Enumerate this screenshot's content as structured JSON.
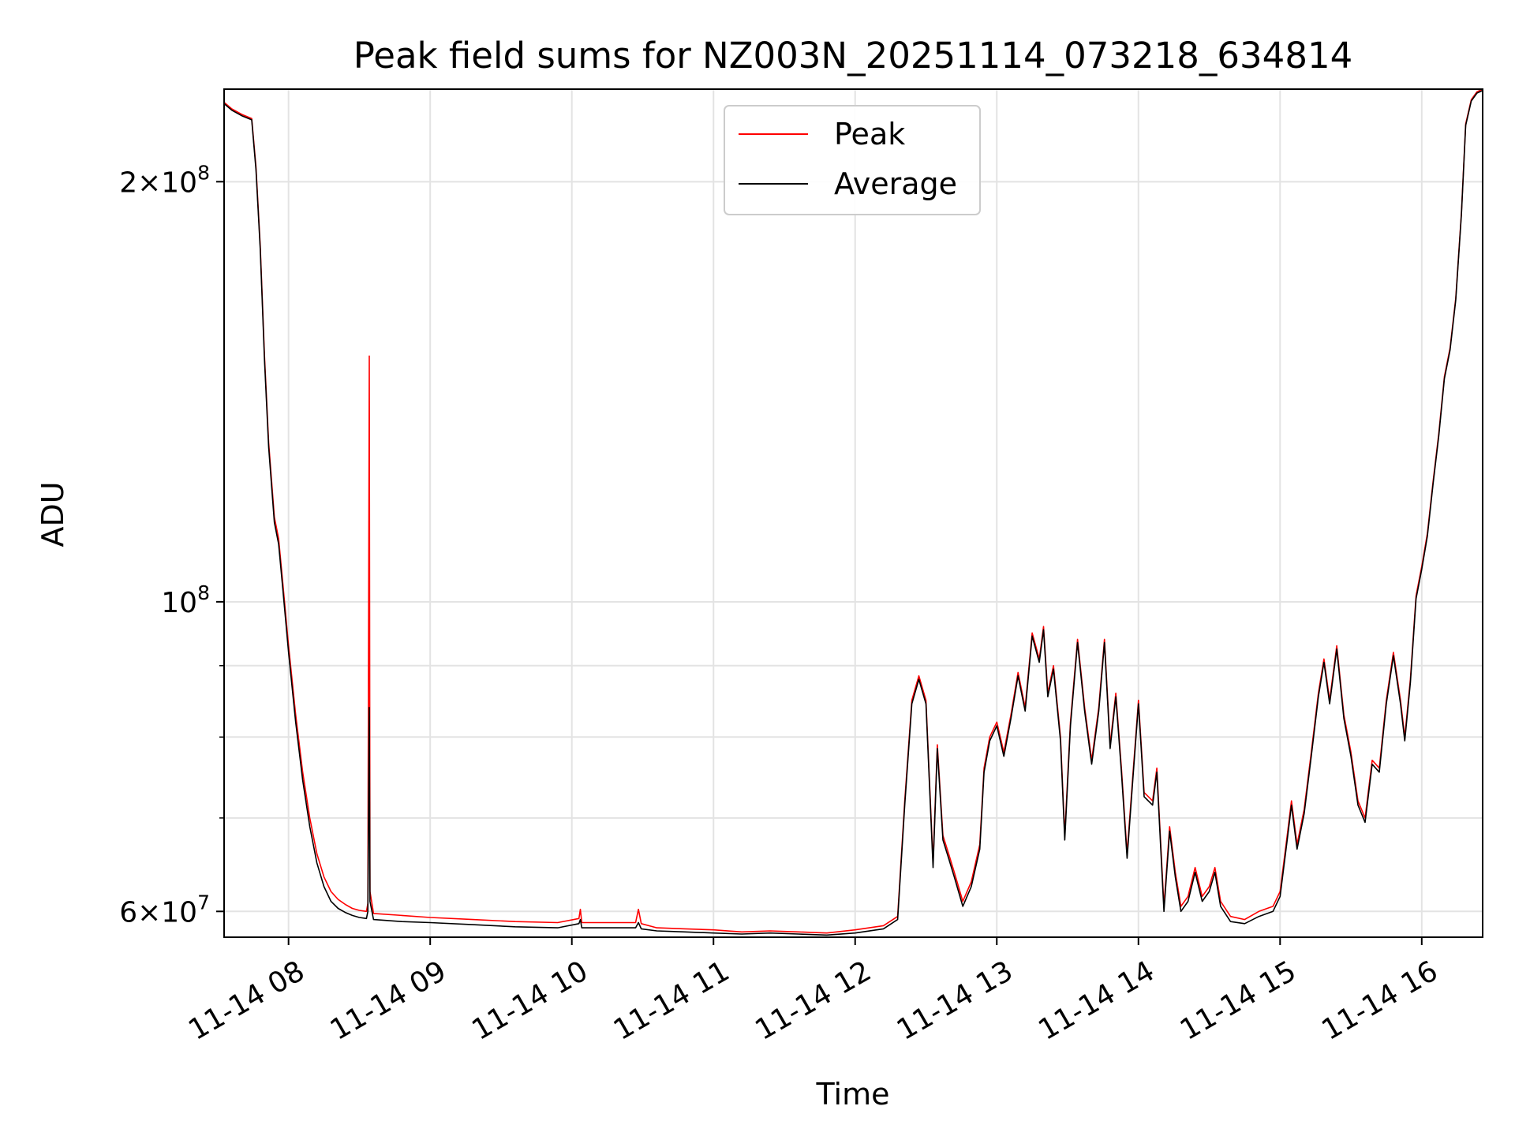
{
  "chart_data": {
    "type": "line",
    "title": "Peak field sums for NZ003N_20251114_073218_634814",
    "xlabel": "Time",
    "ylabel": "ADU",
    "yscale": "log",
    "ylim": [
      57500000,
      233000000
    ],
    "xlim_hours": [
      7.545,
      16.43
    ],
    "grid": true,
    "legend_position": "upper center",
    "x_ticks": [
      {
        "hour": 8,
        "label": "11-14 08"
      },
      {
        "hour": 9,
        "label": "11-14 09"
      },
      {
        "hour": 10,
        "label": "11-14 10"
      },
      {
        "hour": 11,
        "label": "11-14 11"
      },
      {
        "hour": 12,
        "label": "11-14 12"
      },
      {
        "hour": 13,
        "label": "11-14 13"
      },
      {
        "hour": 14,
        "label": "11-14 14"
      },
      {
        "hour": 15,
        "label": "11-14 15"
      },
      {
        "hour": 16,
        "label": "11-14 16"
      }
    ],
    "y_major_ticks": [
      {
        "value": 60000000,
        "mantissa": "6",
        "exponent": "7"
      },
      {
        "value": 100000000,
        "mantissa": "",
        "exponent": "8"
      },
      {
        "value": 200000000,
        "mantissa": "2",
        "exponent": "8"
      }
    ],
    "y_minor_ticks": [
      70000000,
      80000000,
      90000000
    ],
    "series": [
      {
        "name": "Peak",
        "color": "#ff0000",
        "points": [
          [
            7.545,
            228000000
          ],
          [
            7.6,
            225500000
          ],
          [
            7.67,
            223500000
          ],
          [
            7.74,
            222000000
          ],
          [
            7.77,
            205000000
          ],
          [
            7.8,
            180000000
          ],
          [
            7.83,
            150000000
          ],
          [
            7.86,
            130000000
          ],
          [
            7.9,
            115000000
          ],
          [
            7.93,
            111000000
          ],
          [
            7.96,
            103000000
          ],
          [
            8.0,
            93000000
          ],
          [
            8.05,
            83000000
          ],
          [
            8.1,
            75500000
          ],
          [
            8.15,
            70000000
          ],
          [
            8.2,
            66000000
          ],
          [
            8.25,
            63500000
          ],
          [
            8.3,
            62000000
          ],
          [
            8.35,
            61200000
          ],
          [
            8.4,
            60700000
          ],
          [
            8.45,
            60300000
          ],
          [
            8.5,
            60100000
          ],
          [
            8.55,
            60000000
          ],
          [
            8.56,
            60800000
          ],
          [
            8.57,
            150000000
          ],
          [
            8.575,
            62000000
          ],
          [
            8.6,
            59800000
          ],
          [
            8.8,
            59600000
          ],
          [
            9.0,
            59400000
          ],
          [
            9.3,
            59200000
          ],
          [
            9.6,
            59000000
          ],
          [
            9.9,
            58900000
          ],
          [
            10.05,
            59300000
          ],
          [
            10.06,
            60200000
          ],
          [
            10.07,
            58900000
          ],
          [
            10.3,
            58900000
          ],
          [
            10.45,
            58900000
          ],
          [
            10.47,
            60200000
          ],
          [
            10.49,
            58800000
          ],
          [
            10.6,
            58400000
          ],
          [
            10.8,
            58300000
          ],
          [
            11.0,
            58200000
          ],
          [
            11.2,
            58000000
          ],
          [
            11.4,
            58100000
          ],
          [
            11.6,
            58000000
          ],
          [
            11.8,
            57900000
          ],
          [
            12.0,
            58200000
          ],
          [
            12.2,
            58600000
          ],
          [
            12.3,
            59500000
          ],
          [
            12.35,
            72000000
          ],
          [
            12.4,
            85000000
          ],
          [
            12.45,
            88500000
          ],
          [
            12.5,
            85000000
          ],
          [
            12.55,
            65000000
          ],
          [
            12.58,
            79000000
          ],
          [
            12.62,
            68000000
          ],
          [
            12.66,
            66000000
          ],
          [
            12.7,
            64000000
          ],
          [
            12.76,
            61000000
          ],
          [
            12.82,
            63000000
          ],
          [
            12.88,
            67000000
          ],
          [
            12.91,
            76000000
          ],
          [
            12.95,
            80000000
          ],
          [
            13.0,
            82000000
          ],
          [
            13.05,
            78000000
          ],
          [
            13.1,
            83000000
          ],
          [
            13.15,
            89000000
          ],
          [
            13.2,
            84000000
          ],
          [
            13.25,
            95000000
          ],
          [
            13.3,
            91000000
          ],
          [
            13.33,
            96000000
          ],
          [
            13.36,
            86000000
          ],
          [
            13.4,
            90000000
          ],
          [
            13.45,
            80000000
          ],
          [
            13.48,
            68000000
          ],
          [
            13.52,
            82000000
          ],
          [
            13.57,
            94000000
          ],
          [
            13.62,
            84000000
          ],
          [
            13.67,
            77000000
          ],
          [
            13.72,
            84000000
          ],
          [
            13.76,
            94000000
          ],
          [
            13.8,
            79000000
          ],
          [
            13.84,
            86000000
          ],
          [
            13.88,
            76000000
          ],
          [
            13.92,
            66000000
          ],
          [
            13.96,
            75000000
          ],
          [
            14.0,
            85000000
          ],
          [
            14.04,
            73000000
          ],
          [
            14.1,
            72000000
          ],
          [
            14.13,
            76000000
          ],
          [
            14.18,
            60500000
          ],
          [
            14.22,
            69000000
          ],
          [
            14.26,
            64000000
          ],
          [
            14.3,
            60500000
          ],
          [
            14.35,
            61500000
          ],
          [
            14.4,
            64500000
          ],
          [
            14.45,
            61500000
          ],
          [
            14.5,
            62500000
          ],
          [
            14.54,
            64500000
          ],
          [
            14.58,
            61000000
          ],
          [
            14.65,
            59500000
          ],
          [
            14.75,
            59200000
          ],
          [
            14.85,
            60000000
          ],
          [
            14.95,
            60500000
          ],
          [
            15.0,
            62000000
          ],
          [
            15.05,
            68000000
          ],
          [
            15.08,
            72000000
          ],
          [
            15.12,
            67000000
          ],
          [
            15.17,
            71000000
          ],
          [
            15.22,
            78000000
          ],
          [
            15.27,
            86000000
          ],
          [
            15.31,
            91000000
          ],
          [
            15.35,
            85000000
          ],
          [
            15.4,
            93000000
          ],
          [
            15.45,
            83000000
          ],
          [
            15.5,
            78000000
          ],
          [
            15.55,
            72000000
          ],
          [
            15.6,
            70000000
          ],
          [
            15.65,
            77000000
          ],
          [
            15.7,
            76000000
          ],
          [
            15.75,
            85000000
          ],
          [
            15.8,
            92000000
          ],
          [
            15.85,
            85000000
          ],
          [
            15.88,
            80000000
          ],
          [
            15.92,
            88000000
          ],
          [
            15.96,
            101000000
          ],
          [
            16.0,
            106000000
          ],
          [
            16.04,
            112000000
          ],
          [
            16.08,
            122000000
          ],
          [
            16.12,
            132000000
          ],
          [
            16.16,
            145000000
          ],
          [
            16.2,
            152000000
          ],
          [
            16.24,
            165000000
          ],
          [
            16.28,
            190000000
          ],
          [
            16.31,
            220000000
          ],
          [
            16.35,
            229000000
          ],
          [
            16.39,
            232000000
          ],
          [
            16.43,
            233000000
          ]
        ]
      },
      {
        "name": "Average",
        "color": "#000000",
        "points": [
          [
            7.545,
            227500000
          ],
          [
            7.6,
            225000000
          ],
          [
            7.67,
            223000000
          ],
          [
            7.74,
            221500000
          ],
          [
            7.77,
            204000000
          ],
          [
            7.8,
            179000000
          ],
          [
            7.83,
            149000000
          ],
          [
            7.86,
            129000000
          ],
          [
            7.9,
            114000000
          ],
          [
            7.93,
            110000000
          ],
          [
            7.96,
            102000000
          ],
          [
            8.0,
            92000000
          ],
          [
            8.05,
            82000000
          ],
          [
            8.1,
            74500000
          ],
          [
            8.15,
            69000000
          ],
          [
            8.2,
            65000000
          ],
          [
            8.25,
            62500000
          ],
          [
            8.3,
            61000000
          ],
          [
            8.35,
            60300000
          ],
          [
            8.4,
            59900000
          ],
          [
            8.45,
            59600000
          ],
          [
            8.5,
            59400000
          ],
          [
            8.55,
            59300000
          ],
          [
            8.56,
            60000000
          ],
          [
            8.57,
            84000000
          ],
          [
            8.575,
            61000000
          ],
          [
            8.6,
            59200000
          ],
          [
            8.8,
            59000000
          ],
          [
            9.0,
            58900000
          ],
          [
            9.3,
            58700000
          ],
          [
            9.6,
            58500000
          ],
          [
            9.9,
            58400000
          ],
          [
            10.05,
            58800000
          ],
          [
            10.06,
            59200000
          ],
          [
            10.07,
            58400000
          ],
          [
            10.3,
            58400000
          ],
          [
            10.45,
            58400000
          ],
          [
            10.47,
            58900000
          ],
          [
            10.49,
            58300000
          ],
          [
            10.6,
            58100000
          ],
          [
            10.8,
            58000000
          ],
          [
            11.0,
            57900000
          ],
          [
            11.2,
            57800000
          ],
          [
            11.4,
            57900000
          ],
          [
            11.6,
            57800000
          ],
          [
            11.8,
            57700000
          ],
          [
            12.0,
            57900000
          ],
          [
            12.2,
            58300000
          ],
          [
            12.3,
            59200000
          ],
          [
            12.35,
            71500000
          ],
          [
            12.4,
            84500000
          ],
          [
            12.45,
            88000000
          ],
          [
            12.5,
            84500000
          ],
          [
            12.55,
            64500000
          ],
          [
            12.58,
            78500000
          ],
          [
            12.62,
            67500000
          ],
          [
            12.66,
            65500000
          ],
          [
            12.7,
            63500000
          ],
          [
            12.76,
            60500000
          ],
          [
            12.82,
            62500000
          ],
          [
            12.88,
            66500000
          ],
          [
            12.91,
            75500000
          ],
          [
            12.95,
            79500000
          ],
          [
            13.0,
            81500000
          ],
          [
            13.05,
            77500000
          ],
          [
            13.1,
            82500000
          ],
          [
            13.15,
            88500000
          ],
          [
            13.2,
            83500000
          ],
          [
            13.25,
            94500000
          ],
          [
            13.3,
            90500000
          ],
          [
            13.33,
            95500000
          ],
          [
            13.36,
            85500000
          ],
          [
            13.4,
            89500000
          ],
          [
            13.45,
            79500000
          ],
          [
            13.48,
            67500000
          ],
          [
            13.52,
            81500000
          ],
          [
            13.57,
            93500000
          ],
          [
            13.62,
            83500000
          ],
          [
            13.67,
            76500000
          ],
          [
            13.72,
            83500000
          ],
          [
            13.76,
            93500000
          ],
          [
            13.8,
            78500000
          ],
          [
            13.84,
            85500000
          ],
          [
            13.88,
            75500000
          ],
          [
            13.92,
            65500000
          ],
          [
            13.96,
            74500000
          ],
          [
            14.0,
            84500000
          ],
          [
            14.04,
            72500000
          ],
          [
            14.1,
            71500000
          ],
          [
            14.13,
            75500000
          ],
          [
            14.18,
            60000000
          ],
          [
            14.22,
            68500000
          ],
          [
            14.26,
            63500000
          ],
          [
            14.3,
            60000000
          ],
          [
            14.35,
            61000000
          ],
          [
            14.4,
            64000000
          ],
          [
            14.45,
            61000000
          ],
          [
            14.5,
            62000000
          ],
          [
            14.54,
            64000000
          ],
          [
            14.58,
            60500000
          ],
          [
            14.65,
            59000000
          ],
          [
            14.75,
            58800000
          ],
          [
            14.85,
            59500000
          ],
          [
            14.95,
            60000000
          ],
          [
            15.0,
            61500000
          ],
          [
            15.05,
            67500000
          ],
          [
            15.08,
            71500000
          ],
          [
            15.12,
            66500000
          ],
          [
            15.17,
            70500000
          ],
          [
            15.22,
            77500000
          ],
          [
            15.27,
            85500000
          ],
          [
            15.31,
            90500000
          ],
          [
            15.35,
            84500000
          ],
          [
            15.4,
            92500000
          ],
          [
            15.45,
            82500000
          ],
          [
            15.5,
            77500000
          ],
          [
            15.55,
            71500000
          ],
          [
            15.6,
            69500000
          ],
          [
            15.65,
            76500000
          ],
          [
            15.7,
            75500000
          ],
          [
            15.75,
            84500000
          ],
          [
            15.8,
            91500000
          ],
          [
            15.85,
            84500000
          ],
          [
            15.88,
            79500000
          ],
          [
            15.92,
            87500000
          ],
          [
            15.96,
            100500000
          ],
          [
            16.0,
            105500000
          ],
          [
            16.04,
            111500000
          ],
          [
            16.08,
            121500000
          ],
          [
            16.12,
            131500000
          ],
          [
            16.16,
            144500000
          ],
          [
            16.2,
            151500000
          ],
          [
            16.24,
            164500000
          ],
          [
            16.28,
            189500000
          ],
          [
            16.31,
            219500000
          ],
          [
            16.35,
            228500000
          ],
          [
            16.39,
            231500000
          ],
          [
            16.43,
            232500000
          ]
        ]
      }
    ]
  }
}
